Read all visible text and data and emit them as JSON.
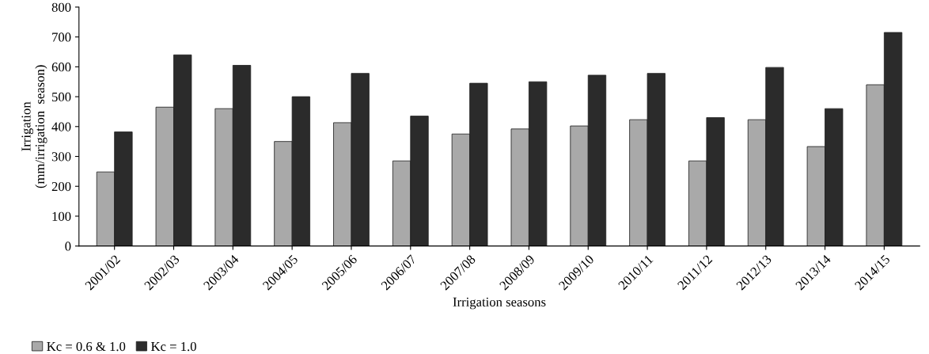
{
  "chart_data": {
    "type": "bar",
    "xlabel": "Irrigation seasons",
    "ylabel": "Irrigation\n(mm/irrigation  season)",
    "categories": [
      "2001/02",
      "2002/03",
      "2003/04",
      "2004/05",
      "2005/06",
      "2006/07",
      "2007/08",
      "2008/09",
      "2009/10",
      "2010/11",
      "2011/12",
      "2012/13",
      "2013/14",
      "2014/15"
    ],
    "series": [
      {
        "name": "Kc = 0.6 & 1.0",
        "color": "#a9a9a9",
        "values": [
          248,
          465,
          460,
          350,
          413,
          285,
          375,
          392,
          402,
          423,
          285,
          423,
          333,
          540
        ]
      },
      {
        "name": "Kc = 1.0",
        "color": "#2b2b2b",
        "values": [
          382,
          640,
          605,
          500,
          578,
          435,
          545,
          550,
          572,
          578,
          430,
          598,
          460,
          715
        ]
      }
    ],
    "ylim": [
      0,
      800
    ],
    "yticks": [
      0,
      100,
      200,
      300,
      400,
      500,
      600,
      700,
      800
    ],
    "grid": false,
    "legend": "bottom left"
  }
}
